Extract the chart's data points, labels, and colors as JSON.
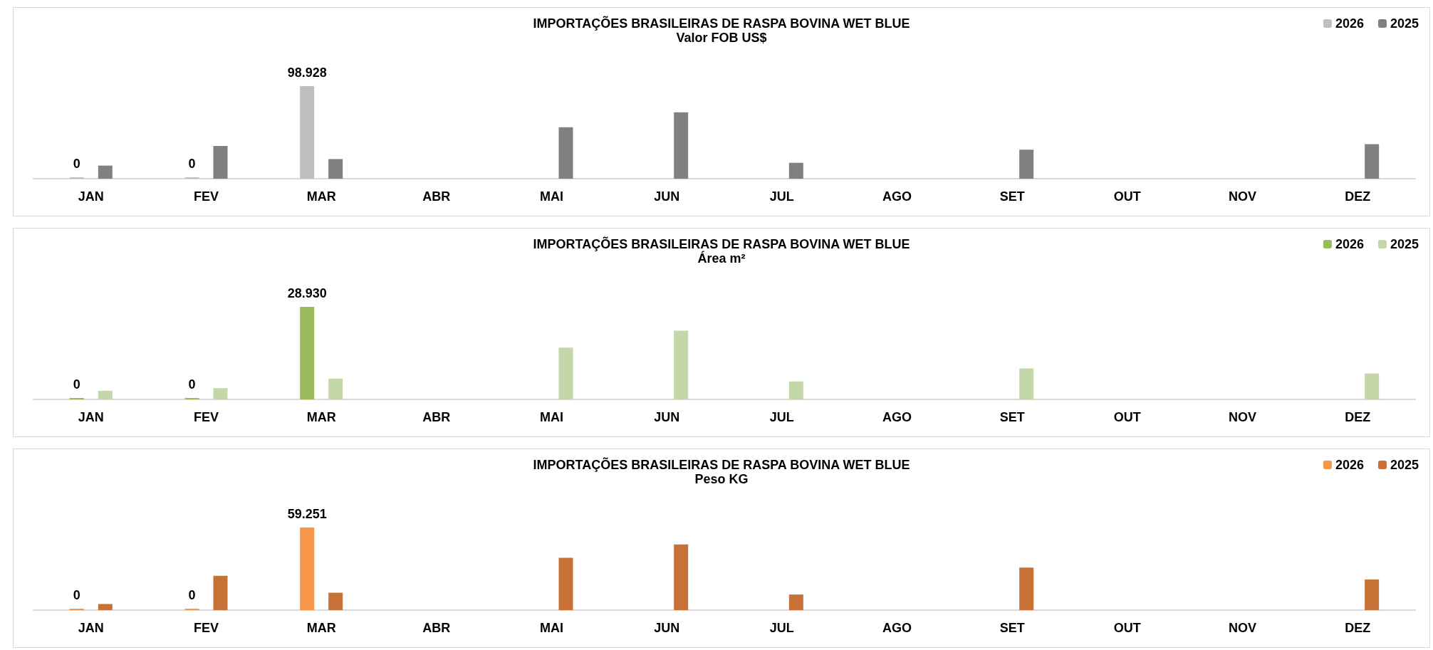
{
  "chart_data": [
    {
      "type": "bar",
      "title": "IMPORTAÇÕES BRASILEIRAS DE RASPA BOVINA WET BLUE",
      "subtitle": "Valor FOB US$",
      "legend": "top right",
      "categories": [
        "JAN",
        "FEV",
        "MAR",
        "ABR",
        "MAI",
        "JUN",
        "JUL",
        "AGO",
        "SET",
        "OUT",
        "NOV",
        "DEZ"
      ],
      "series": [
        {
          "name": "2026",
          "color": "#bfbfbf",
          "values": [
            0,
            0,
            98928,
            null,
            null,
            null,
            null,
            null,
            null,
            null,
            null,
            null
          ],
          "value_labels": [
            "0",
            "0",
            "98.928",
            null,
            null,
            null,
            null,
            null,
            null,
            null,
            null,
            null
          ]
        },
        {
          "name": "2025",
          "color": "#808080",
          "values": [
            14000,
            35000,
            21000,
            null,
            55000,
            71000,
            17000,
            null,
            31000,
            null,
            null,
            37000
          ]
        }
      ]
    },
    {
      "type": "bar",
      "title": "IMPORTAÇÕES BRASILEIRAS DE RASPA BOVINA WET BLUE",
      "subtitle": "Área m²",
      "legend": "top right",
      "categories": [
        "JAN",
        "FEV",
        "MAR",
        "ABR",
        "MAI",
        "JUN",
        "JUL",
        "AGO",
        "SET",
        "OUT",
        "NOV",
        "DEZ"
      ],
      "series": [
        {
          "name": "2026",
          "color": "#9bbb59",
          "values": [
            0,
            0,
            28930,
            null,
            null,
            null,
            null,
            null,
            null,
            null,
            null,
            null
          ],
          "value_labels": [
            "0",
            "0",
            "28.930",
            null,
            null,
            null,
            null,
            null,
            null,
            null,
            null,
            null
          ]
        },
        {
          "name": "2025",
          "color": "#c4d7a8",
          "values": [
            2700,
            3500,
            6500,
            null,
            16200,
            21500,
            5600,
            null,
            9700,
            null,
            null,
            8100
          ]
        }
      ]
    },
    {
      "type": "bar",
      "title": "IMPORTAÇÕES BRASILEIRAS DE RASPA BOVINA WET BLUE",
      "subtitle": "Peso KG",
      "legend": "top right",
      "categories": [
        "JAN",
        "FEV",
        "MAR",
        "ABR",
        "MAI",
        "JUN",
        "JUL",
        "AGO",
        "SET",
        "OUT",
        "NOV",
        "DEZ"
      ],
      "series": [
        {
          "name": "2026",
          "color": "#f79646",
          "values": [
            0,
            0,
            59251,
            null,
            null,
            null,
            null,
            null,
            null,
            null,
            null,
            null
          ],
          "value_labels": [
            "0",
            "0",
            "59.251",
            null,
            null,
            null,
            null,
            null,
            null,
            null,
            null,
            null
          ]
        },
        {
          "name": "2025",
          "color": "#c87137",
          "values": [
            4400,
            24700,
            12500,
            null,
            37600,
            47100,
            11200,
            null,
            30500,
            null,
            null,
            22000
          ]
        }
      ]
    }
  ]
}
